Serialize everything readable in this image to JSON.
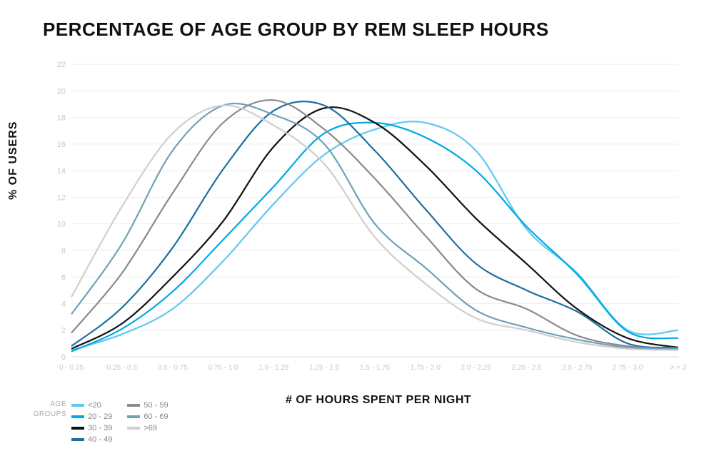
{
  "title": "PERCENTAGE OF AGE GROUP BY REM SLEEP HOURS",
  "title_fontsize": 26,
  "ylabel": "% OF USERS",
  "xlabel": "# OF HOURS SPENT PER NIGHT",
  "axis_label_fontsize": 16,
  "background_color": "#ffffff",
  "grid_color": "#eeeeee",
  "tick_color": "#c8c8c8",
  "chart": {
    "type": "line",
    "ylim": [
      0,
      22
    ],
    "ytick_step": 2,
    "yticks": [
      0,
      2,
      4,
      6,
      8,
      10,
      12,
      14,
      16,
      18,
      20,
      22
    ],
    "categories": [
      "0 - 0.25",
      "0.25 - 0.5",
      "0.5 - 0.75",
      "0.75 - 1.0",
      "1.0 - 1.25",
      "1.25 - 1.5",
      "1.5 - 1.75",
      "1.75 - 2.0",
      "2.0 - 2.25",
      "2.25 - 2.5",
      "2.5 - 2.75",
      "2.75 - 3.0",
      "> = 3"
    ],
    "line_width": 2.2,
    "series": [
      {
        "name": "<20",
        "color": "#5fc8f0",
        "values": [
          0.5,
          1.7,
          3.6,
          7.2,
          11.5,
          15.2,
          17.1,
          17.6,
          15.5,
          9.6,
          6.3,
          2.0,
          2.0
        ]
      },
      {
        "name": "20 - 29",
        "color": "#00a8e8",
        "values": [
          0.4,
          2.1,
          4.9,
          8.8,
          12.8,
          16.8,
          17.6,
          16.5,
          14.0,
          9.8,
          6.2,
          1.9,
          1.4
        ]
      },
      {
        "name": "30 - 39",
        "color": "#111111",
        "values": [
          0.6,
          2.5,
          6.0,
          10.2,
          15.8,
          18.7,
          17.6,
          14.4,
          10.4,
          7.0,
          3.6,
          1.4,
          0.7
        ]
      },
      {
        "name": "40 - 49",
        "color": "#1e6f9f",
        "values": [
          0.8,
          3.7,
          8.2,
          14.1,
          18.5,
          18.9,
          15.5,
          11.1,
          7.0,
          5.0,
          3.4,
          1.0,
          0.7
        ]
      },
      {
        "name": "50 - 59",
        "color": "#8a8a8a",
        "values": [
          1.8,
          6.3,
          12.3,
          17.6,
          19.3,
          17.1,
          13.4,
          9.1,
          5.1,
          3.6,
          1.6,
          0.8,
          0.6
        ]
      },
      {
        "name": "60 - 69",
        "color": "#6fa1b8",
        "values": [
          3.2,
          8.5,
          15.5,
          18.9,
          18.2,
          16.0,
          10.0,
          6.7,
          3.5,
          2.2,
          1.3,
          0.7,
          0.6
        ]
      },
      {
        "name": ">69",
        "color": "#cfcfcf",
        "values": [
          4.5,
          11.3,
          16.8,
          18.9,
          17.4,
          14.5,
          9.0,
          5.5,
          2.9,
          2.0,
          1.1,
          0.6,
          0.5
        ]
      }
    ]
  },
  "legend": {
    "title_line1": "AGE",
    "title_line2": "GROUPS",
    "col1": [
      "<20",
      "20 - 29",
      "30 - 39",
      "40 - 49"
    ],
    "col2": [
      "50 - 59",
      "60 - 69",
      ">69"
    ]
  }
}
